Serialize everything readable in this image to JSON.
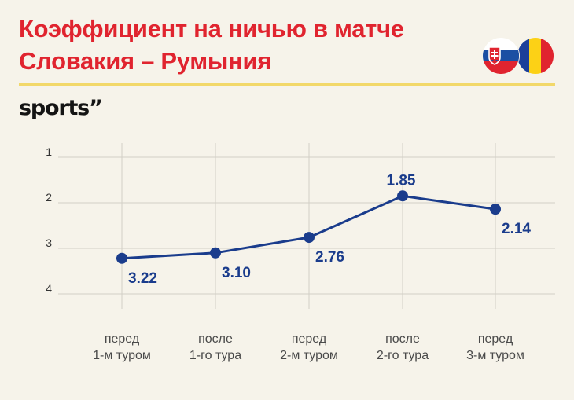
{
  "title_lines": [
    "Коэффициент на ничью в матче",
    "Словакия – Румыния"
  ],
  "brand": "sports”",
  "flags": [
    {
      "name": "Slovakia",
      "colors": [
        "#ffffff",
        "#1b4fa3",
        "#e0242f"
      ]
    },
    {
      "name": "Romania",
      "colors": [
        "#1b3f9a",
        "#fcd116",
        "#e0242f"
      ]
    }
  ],
  "colors": {
    "title": "#e0242f",
    "line": "#1a3c8c",
    "rule": "#f2d86a",
    "background": "#f6f3ea"
  },
  "chart_data": {
    "type": "line",
    "y_reversed": true,
    "ylim": [
      1,
      4
    ],
    "yticks": [
      "1",
      "2",
      "3",
      "4"
    ],
    "categories": [
      [
        "перед",
        "1-м туром"
      ],
      [
        "после",
        "1-го тура"
      ],
      [
        "перед",
        "2-м туром"
      ],
      [
        "после",
        "2-го тура"
      ],
      [
        "перед",
        "3-м туром"
      ]
    ],
    "values": [
      3.22,
      3.1,
      2.76,
      1.85,
      2.14
    ],
    "value_labels": [
      "3.22",
      "3.10",
      "2.76",
      "1.85",
      "2.14"
    ],
    "label_positions": [
      "below",
      "below",
      "below",
      "above",
      "below"
    ],
    "grid": true
  }
}
